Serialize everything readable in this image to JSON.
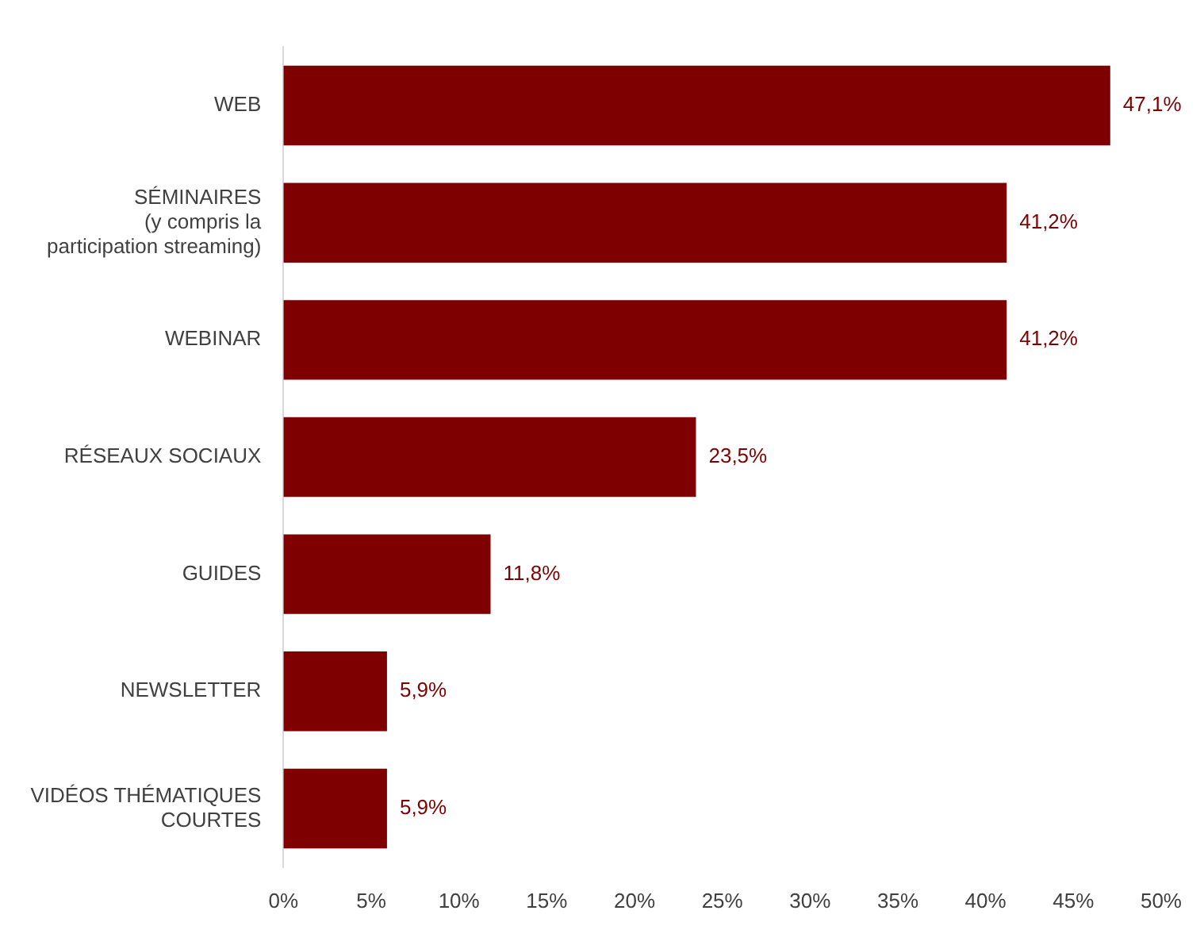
{
  "chart_data": {
    "type": "bar",
    "orientation": "horizontal",
    "categories": [
      "WEB",
      "SÉMINAIRES\n(y compris la\nparticipation streaming)",
      "WEBINAR",
      "RÉSEAUX SOCIAUX",
      "GUIDES",
      "NEWSLETTER",
      "VIDÉOS THÉMATIQUES\nCOURTES"
    ],
    "values": [
      47.1,
      41.2,
      41.2,
      23.5,
      11.8,
      5.9,
      5.9
    ],
    "value_labels": [
      "47,1%",
      "41,2%",
      "41,2%",
      "23,5%",
      "11,8%",
      "5,9%",
      "5,9%"
    ],
    "color": "#7f0000",
    "xlim": [
      0,
      50
    ],
    "xticks": [
      {
        "value": 0,
        "label": "0%"
      },
      {
        "value": 5,
        "label": "5%"
      },
      {
        "value": 10,
        "label": "10%"
      },
      {
        "value": 15,
        "label": "15%"
      },
      {
        "value": 20,
        "label": "20%"
      },
      {
        "value": 25,
        "label": "25%"
      },
      {
        "value": 30,
        "label": "30%"
      },
      {
        "value": 35,
        "label": "35%"
      },
      {
        "value": 40,
        "label": "40%"
      },
      {
        "value": 45,
        "label": "45%"
      },
      {
        "value": 50,
        "label": "50%"
      }
    ],
    "grid": false,
    "legend": false
  }
}
